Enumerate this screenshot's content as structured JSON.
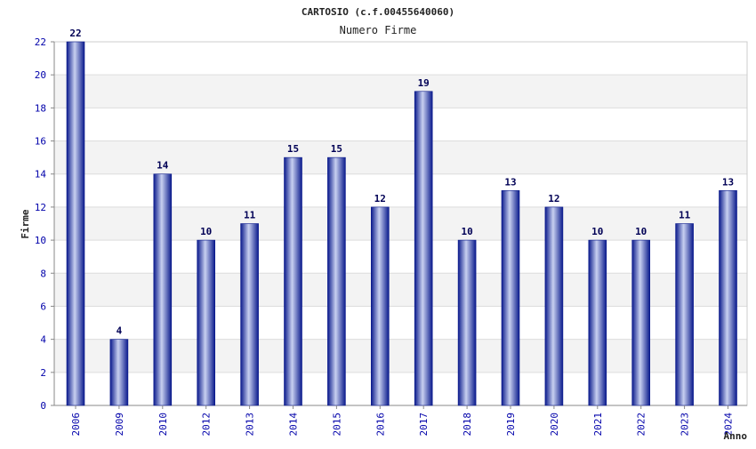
{
  "chart_data": {
    "type": "bar",
    "title": "CARTOSIO (c.f.00455640060)",
    "subtitle": "Numero Firme",
    "xlabel": "Anno",
    "ylabel": "Firme",
    "categories": [
      "2006",
      "2009",
      "2010",
      "2012",
      "2013",
      "2014",
      "2015",
      "2016",
      "2017",
      "2018",
      "2019",
      "2020",
      "2021",
      "2022",
      "2023",
      "2024"
    ],
    "values": [
      22,
      4,
      14,
      10,
      11,
      15,
      15,
      12,
      19,
      10,
      13,
      12,
      10,
      10,
      11,
      13
    ],
    "ylim": [
      0,
      22
    ],
    "yticks": [
      0,
      2,
      4,
      6,
      8,
      10,
      12,
      14,
      16,
      18,
      20,
      22
    ],
    "grid": true,
    "colors": {
      "bar_dark": "#0a1a8c",
      "bar_light": "#c8d0f0",
      "band": "#f3f3f3",
      "tick_text": "#0000aa",
      "data_label": "#000055"
    }
  }
}
